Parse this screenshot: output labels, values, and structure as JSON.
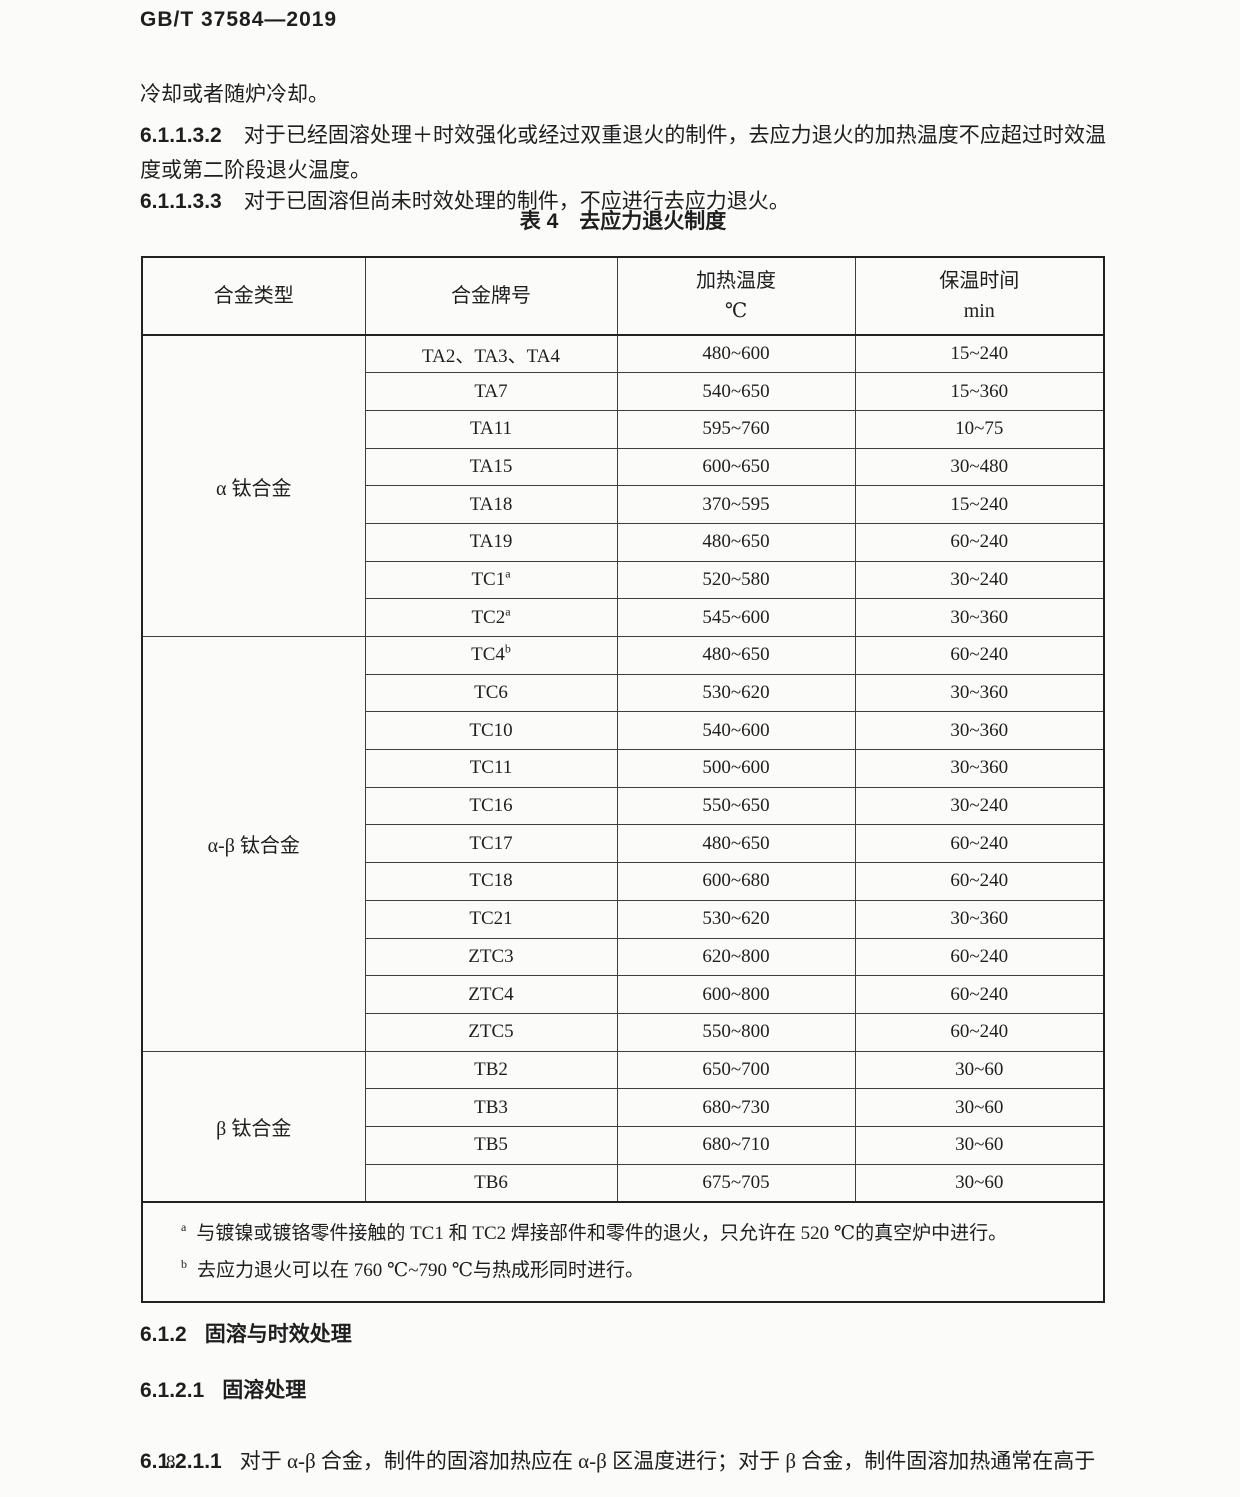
{
  "page": {
    "doc_code": "GB/T 37584—2019",
    "page_number": "8"
  },
  "body": {
    "para_intro": "冷却或者随炉冷却。",
    "clauses": [
      {
        "num": "6.1.1.3.2",
        "text": "对于已经固溶处理＋时效强化或经过双重退火的制件，去应力退火的加热温度不应超过时效温度或第二阶段退火温度。"
      },
      {
        "num": "6.1.1.3.3",
        "text": "对于已固溶但尚未时效处理的制件，不应进行去应力退火。"
      }
    ]
  },
  "table4": {
    "title": "表 4　去应力退火制度",
    "headers": {
      "col1": "合金类型",
      "col2": "合金牌号",
      "col3_line1": "加热温度",
      "col3_line2": "℃",
      "col4_line1": "保温时间",
      "col4_line2": "min"
    },
    "groups": [
      {
        "type": "α 钛合金",
        "rows": [
          {
            "grade": "TA2、TA3、TA4",
            "sup": "",
            "temp": "480~600",
            "time": "15~240"
          },
          {
            "grade": "TA7",
            "sup": "",
            "temp": "540~650",
            "time": "15~360"
          },
          {
            "grade": "TA11",
            "sup": "",
            "temp": "595~760",
            "time": "10~75"
          },
          {
            "grade": "TA15",
            "sup": "",
            "temp": "600~650",
            "time": "30~480"
          },
          {
            "grade": "TA18",
            "sup": "",
            "temp": "370~595",
            "time": "15~240"
          },
          {
            "grade": "TA19",
            "sup": "",
            "temp": "480~650",
            "time": "60~240"
          },
          {
            "grade": "TC1",
            "sup": "a",
            "temp": "520~580",
            "time": "30~240"
          },
          {
            "grade": "TC2",
            "sup": "a",
            "temp": "545~600",
            "time": "30~360"
          }
        ]
      },
      {
        "type": "α-β 钛合金",
        "rows": [
          {
            "grade": "TC4",
            "sup": "b",
            "temp": "480~650",
            "time": "60~240"
          },
          {
            "grade": "TC6",
            "sup": "",
            "temp": "530~620",
            "time": "30~360"
          },
          {
            "grade": "TC10",
            "sup": "",
            "temp": "540~600",
            "time": "30~360"
          },
          {
            "grade": "TC11",
            "sup": "",
            "temp": "500~600",
            "time": "30~360"
          },
          {
            "grade": "TC16",
            "sup": "",
            "temp": "550~650",
            "time": "30~240"
          },
          {
            "grade": "TC17",
            "sup": "",
            "temp": "480~650",
            "time": "60~240"
          },
          {
            "grade": "TC18",
            "sup": "",
            "temp": "600~680",
            "time": "60~240"
          },
          {
            "grade": "TC21",
            "sup": "",
            "temp": "530~620",
            "time": "30~360"
          },
          {
            "grade": "ZTC3",
            "sup": "",
            "temp": "620~800",
            "time": "60~240"
          },
          {
            "grade": "ZTC4",
            "sup": "",
            "temp": "600~800",
            "time": "60~240"
          },
          {
            "grade": "ZTC5",
            "sup": "",
            "temp": "550~800",
            "time": "60~240"
          }
        ]
      },
      {
        "type": "β 钛合金",
        "rows": [
          {
            "grade": "TB2",
            "sup": "",
            "temp": "650~700",
            "time": "30~60"
          },
          {
            "grade": "TB3",
            "sup": "",
            "temp": "680~730",
            "time": "30~60"
          },
          {
            "grade": "TB5",
            "sup": "",
            "temp": "680~710",
            "time": "30~60"
          },
          {
            "grade": "TB6",
            "sup": "",
            "temp": "675~705",
            "time": "30~60"
          }
        ]
      }
    ],
    "footnotes": [
      {
        "marker": "a",
        "text": "与镀镍或镀铬零件接触的 TC1 和 TC2 焊接部件和零件的退火，只允许在 520 ℃的真空炉中进行。"
      },
      {
        "marker": "b",
        "text": "去应力退火可以在 760 ℃~790 ℃与热成形同时进行。"
      }
    ]
  },
  "sections": [
    {
      "num": "6.1.2",
      "title": "固溶与时效处理"
    },
    {
      "num": "6.1.2.1",
      "title": "固溶处理"
    }
  ],
  "clause_61211": {
    "num": "6.1.2.1.1",
    "text": "对于 α-β 合金，制件的固溶加热应在 α-β 区温度进行；对于 β 合金，制件固溶加热通常在高于"
  }
}
